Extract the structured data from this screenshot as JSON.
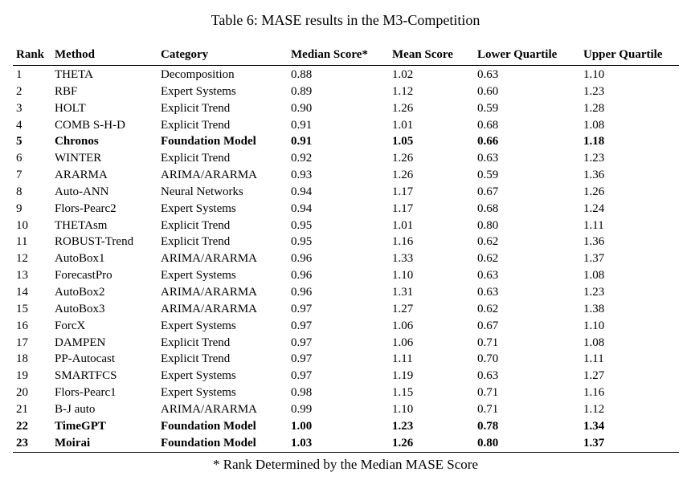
{
  "caption": "Table 6: MASE results in the M3-Competition",
  "footnote": "* Rank Determined by the Median MASE Score",
  "table": {
    "columns": {
      "rank": "Rank",
      "method": "Method",
      "category": "Category",
      "median": "Median Score*",
      "mean": "Mean Score",
      "lower": "Lower Quartile",
      "upper": "Upper Quartile"
    },
    "rows": [
      {
        "rank": "1",
        "method": "THETA",
        "category": "Decomposition",
        "median": "0.88",
        "mean": "1.02",
        "lower": "0.63",
        "upper": "1.10",
        "bold": false
      },
      {
        "rank": "2",
        "method": "RBF",
        "category": "Expert Systems",
        "median": "0.89",
        "mean": "1.12",
        "lower": "0.60",
        "upper": "1.23",
        "bold": false
      },
      {
        "rank": "3",
        "method": "HOLT",
        "category": "Explicit Trend",
        "median": "0.90",
        "mean": "1.26",
        "lower": "0.59",
        "upper": "1.28",
        "bold": false
      },
      {
        "rank": "4",
        "method": "COMB S-H-D",
        "category": "Explicit Trend",
        "median": "0.91",
        "mean": "1.01",
        "lower": "0.68",
        "upper": "1.08",
        "bold": false
      },
      {
        "rank": "5",
        "method": "Chronos",
        "category": "Foundation Model",
        "median": "0.91",
        "mean": "1.05",
        "lower": "0.66",
        "upper": "1.18",
        "bold": true
      },
      {
        "rank": "6",
        "method": "WINTER",
        "category": "Explicit Trend",
        "median": "0.92",
        "mean": "1.26",
        "lower": "0.63",
        "upper": "1.23",
        "bold": false
      },
      {
        "rank": "7",
        "method": "ARARMA",
        "category": "ARIMA/ARARMA",
        "median": "0.93",
        "mean": "1.26",
        "lower": "0.59",
        "upper": "1.36",
        "bold": false
      },
      {
        "rank": "8",
        "method": "Auto-ANN",
        "category": "Neural Networks",
        "median": "0.94",
        "mean": "1.17",
        "lower": "0.67",
        "upper": "1.26",
        "bold": false
      },
      {
        "rank": "9",
        "method": "Flors-Pearc2",
        "category": "Expert Systems",
        "median": "0.94",
        "mean": "1.17",
        "lower": "0.68",
        "upper": "1.24",
        "bold": false
      },
      {
        "rank": "10",
        "method": "THETAsm",
        "category": "Explicit Trend",
        "median": "0.95",
        "mean": "1.01",
        "lower": "0.80",
        "upper": "1.11",
        "bold": false
      },
      {
        "rank": "11",
        "method": "ROBUST-Trend",
        "category": "Explicit Trend",
        "median": "0.95",
        "mean": "1.16",
        "lower": "0.62",
        "upper": "1.36",
        "bold": false
      },
      {
        "rank": "12",
        "method": "AutoBox1",
        "category": "ARIMA/ARARMA",
        "median": "0.96",
        "mean": "1.33",
        "lower": "0.62",
        "upper": "1.37",
        "bold": false
      },
      {
        "rank": "13",
        "method": "ForecastPro",
        "category": "Expert Systems",
        "median": "0.96",
        "mean": "1.10",
        "lower": "0.63",
        "upper": "1.08",
        "bold": false
      },
      {
        "rank": "14",
        "method": "AutoBox2",
        "category": "ARIMA/ARARMA",
        "median": "0.96",
        "mean": "1.31",
        "lower": "0.63",
        "upper": "1.23",
        "bold": false
      },
      {
        "rank": "15",
        "method": "AutoBox3",
        "category": "ARIMA/ARARMA",
        "median": "0.97",
        "mean": "1.27",
        "lower": "0.62",
        "upper": "1.38",
        "bold": false
      },
      {
        "rank": "16",
        "method": "ForcX",
        "category": "Expert Systems",
        "median": "0.97",
        "mean": "1.06",
        "lower": "0.67",
        "upper": "1.10",
        "bold": false
      },
      {
        "rank": "17",
        "method": "DAMPEN",
        "category": "Explicit Trend",
        "median": "0.97",
        "mean": "1.06",
        "lower": "0.71",
        "upper": "1.08",
        "bold": false
      },
      {
        "rank": "18",
        "method": "PP-Autocast",
        "category": "Explicit Trend",
        "median": "0.97",
        "mean": "1.11",
        "lower": "0.70",
        "upper": "1.11",
        "bold": false
      },
      {
        "rank": "19",
        "method": "SMARTFCS",
        "category": "Expert Systems",
        "median": "0.97",
        "mean": "1.19",
        "lower": "0.63",
        "upper": "1.27",
        "bold": false
      },
      {
        "rank": "20",
        "method": "Flors-Pearc1",
        "category": "Expert Systems",
        "median": "0.98",
        "mean": "1.15",
        "lower": "0.71",
        "upper": "1.16",
        "bold": false
      },
      {
        "rank": "21",
        "method": "B-J auto",
        "category": "ARIMA/ARARMA",
        "median": "0.99",
        "mean": "1.10",
        "lower": "0.71",
        "upper": "1.12",
        "bold": false
      },
      {
        "rank": "22",
        "method": "TimeGPT",
        "category": "Foundation Model",
        "median": "1.00",
        "mean": "1.23",
        "lower": "0.78",
        "upper": "1.34",
        "bold": true
      },
      {
        "rank": "23",
        "method": "Moirai",
        "category": "Foundation Model",
        "median": "1.03",
        "mean": "1.26",
        "lower": "0.80",
        "upper": "1.37",
        "bold": true
      }
    ]
  }
}
